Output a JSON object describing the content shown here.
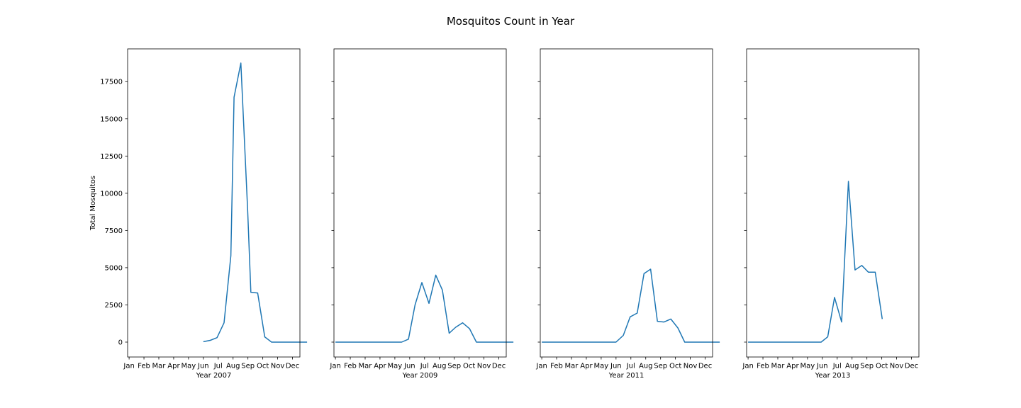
{
  "title": "Mosquitos Count in Year",
  "chart_data": {
    "type": "line",
    "title": "Mosquitos Count in Year",
    "ylabel": "Total Mosquitos",
    "ylim": [
      -1000,
      19700
    ],
    "yticks": [
      0,
      2500,
      5000,
      7500,
      10000,
      12500,
      15000,
      17500
    ],
    "xticks": [
      "Jan",
      "Feb",
      "Mar",
      "Apr",
      "May",
      "Jun",
      "Jul",
      "Aug",
      "Sep",
      "Oct",
      "Nov",
      "Dec"
    ],
    "line_color": "#1f77b4",
    "panels": [
      {
        "xlabel": "Year 2007",
        "points": [
          [
            "Jun 1",
            30
          ],
          [
            "Jun 15",
            120
          ],
          [
            "Jun 29",
            300
          ],
          [
            "Jul 13",
            1300
          ],
          [
            "Jul 27",
            5800
          ],
          [
            "Aug 3",
            16450
          ],
          [
            "Aug 17",
            18750
          ],
          [
            "Aug 31",
            8850
          ],
          [
            "Sep 7",
            3350
          ],
          [
            "Sep 21",
            3300
          ],
          [
            "Oct 5",
            350
          ],
          [
            "Oct 19",
            0
          ],
          [
            "Nov 2",
            0
          ],
          [
            "Nov 16",
            0
          ],
          [
            "Nov 30",
            0
          ],
          [
            "Dec 14",
            0
          ],
          [
            "Dec 31",
            0
          ]
        ]
      },
      {
        "xlabel": "Year 2009",
        "points": [
          [
            "Jan 1",
            0
          ],
          [
            "Feb 1",
            0
          ],
          [
            "Mar 1",
            0
          ],
          [
            "Apr 1",
            0
          ],
          [
            "May 1",
            0
          ],
          [
            "May 15",
            0
          ],
          [
            "May 29",
            200
          ],
          [
            "Jun 12",
            2500
          ],
          [
            "Jun 26",
            4000
          ],
          [
            "Jul 10",
            2600
          ],
          [
            "Jul 24",
            4500
          ],
          [
            "Aug 7",
            3500
          ],
          [
            "Aug 21",
            600
          ],
          [
            "Sep 4",
            1000
          ],
          [
            "Sep 18",
            1300
          ],
          [
            "Oct 2",
            900
          ],
          [
            "Oct 16",
            0
          ],
          [
            "Nov 1",
            0
          ],
          [
            "Dec 1",
            0
          ],
          [
            "Dec 31",
            0
          ]
        ]
      },
      {
        "xlabel": "Year 2011",
        "points": [
          [
            "Jan 1",
            0
          ],
          [
            "Feb 1",
            0
          ],
          [
            "Mar 1",
            0
          ],
          [
            "Apr 1",
            0
          ],
          [
            "May 1",
            0
          ],
          [
            "Jun 1",
            0
          ],
          [
            "Jun 16",
            450
          ],
          [
            "Jun 30",
            1700
          ],
          [
            "Jul 14",
            1950
          ],
          [
            "Jul 28",
            4600
          ],
          [
            "Aug 11",
            4900
          ],
          [
            "Aug 25",
            1400
          ],
          [
            "Sep 8",
            1350
          ],
          [
            "Sep 22",
            1550
          ],
          [
            "Oct 6",
            950
          ],
          [
            "Oct 20",
            0
          ],
          [
            "Nov 3",
            0
          ],
          [
            "Dec 1",
            0
          ],
          [
            "Dec 31",
            0
          ]
        ]
      },
      {
        "xlabel": "Year 2013",
        "points": [
          [
            "Jan 1",
            0
          ],
          [
            "Feb 1",
            0
          ],
          [
            "Mar 1",
            0
          ],
          [
            "Apr 1",
            0
          ],
          [
            "May 1",
            0
          ],
          [
            "May 29",
            0
          ],
          [
            "Jun 12",
            350
          ],
          [
            "Jun 26",
            3000
          ],
          [
            "Jul 10",
            1350
          ],
          [
            "Jul 24",
            10800
          ],
          [
            "Aug 7",
            4850
          ],
          [
            "Aug 21",
            5150
          ],
          [
            "Sep 4",
            4700
          ],
          [
            "Sep 18",
            4700
          ],
          [
            "Oct 2",
            1550
          ]
        ]
      }
    ]
  }
}
